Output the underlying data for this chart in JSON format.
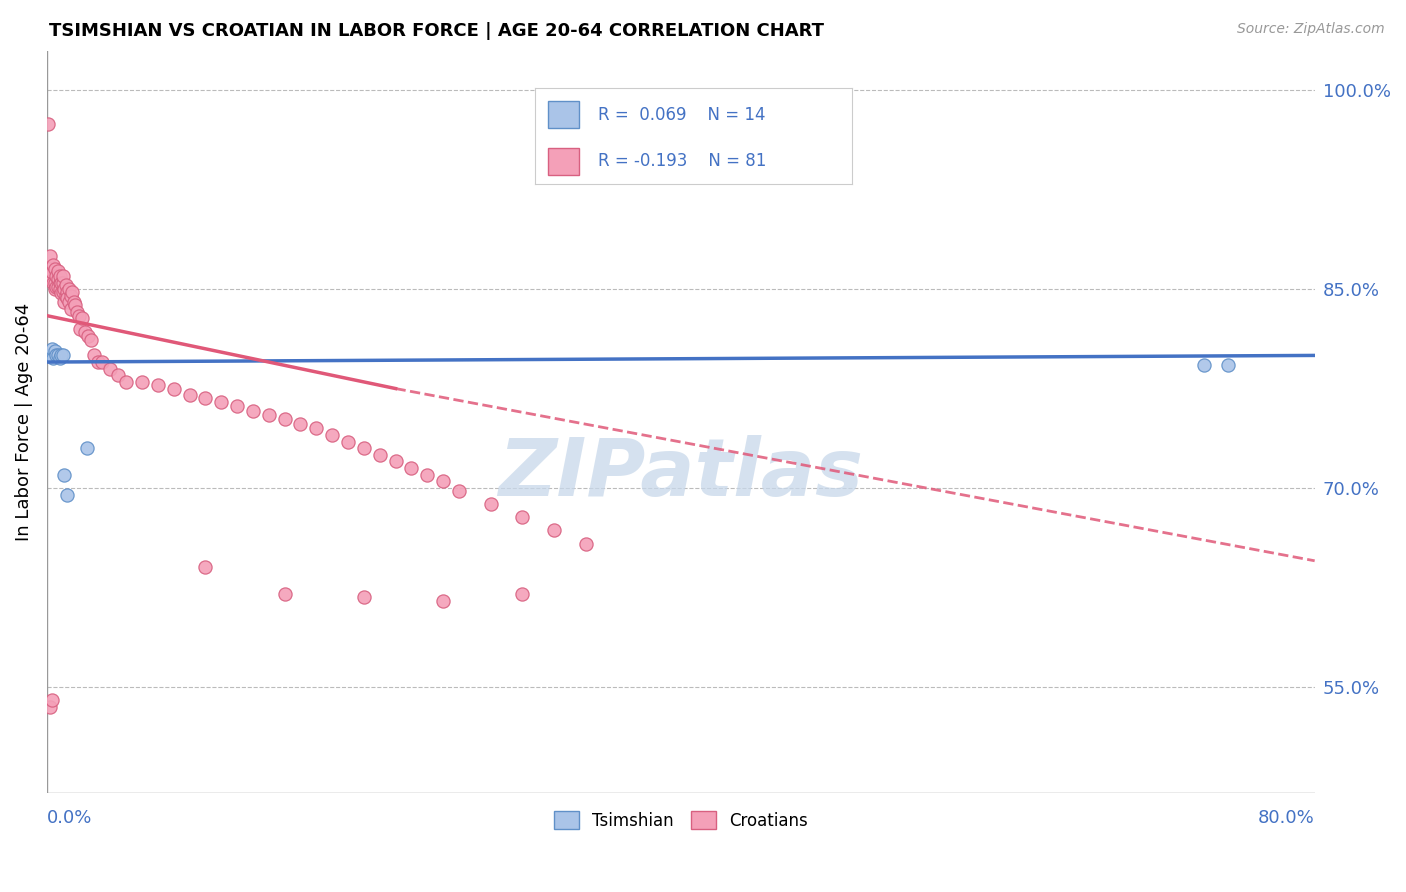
{
  "title": "TSIMSHIAN VS CROATIAN IN LABOR FORCE | AGE 20-64 CORRELATION CHART",
  "source": "Source: ZipAtlas.com",
  "ylabel": "In Labor Force | Age 20-64",
  "right_yticks": [
    55.0,
    70.0,
    85.0,
    100.0
  ],
  "x_range": [
    0.0,
    0.8
  ],
  "y_range": [
    0.47,
    1.03
  ],
  "tsimshian_R": 0.069,
  "tsimshian_N": 14,
  "croatian_R": -0.193,
  "croatian_N": 81,
  "tsimshian_color": "#aac4e8",
  "tsimshian_edge": "#6090c8",
  "croatian_color": "#f4a0b8",
  "croatian_edge": "#d86080",
  "trend_tsimshian_color": "#4472C4",
  "trend_croatian_color": "#E05878",
  "watermark_color": "#c8d8ea",
  "tsimshian_x": [
    0.002,
    0.003,
    0.004,
    0.005,
    0.006,
    0.007,
    0.008,
    0.009,
    0.01,
    0.011,
    0.013,
    0.025,
    0.73,
    0.745
  ],
  "tsimshian_y": [
    0.8,
    0.805,
    0.798,
    0.803,
    0.8,
    0.8,
    0.798,
    0.8,
    0.8,
    0.71,
    0.695,
    0.73,
    0.793,
    0.793
  ],
  "croatian_x": [
    0.001,
    0.002,
    0.002,
    0.003,
    0.003,
    0.004,
    0.004,
    0.005,
    0.005,
    0.005,
    0.006,
    0.006,
    0.007,
    0.007,
    0.007,
    0.008,
    0.008,
    0.008,
    0.009,
    0.009,
    0.01,
    0.01,
    0.01,
    0.011,
    0.011,
    0.012,
    0.012,
    0.013,
    0.013,
    0.014,
    0.014,
    0.015,
    0.015,
    0.016,
    0.017,
    0.018,
    0.019,
    0.02,
    0.021,
    0.022,
    0.024,
    0.026,
    0.028,
    0.03,
    0.032,
    0.035,
    0.04,
    0.045,
    0.05,
    0.06,
    0.07,
    0.08,
    0.09,
    0.1,
    0.11,
    0.12,
    0.13,
    0.14,
    0.15,
    0.16,
    0.17,
    0.18,
    0.19,
    0.2,
    0.21,
    0.22,
    0.23,
    0.24,
    0.25,
    0.26,
    0.28,
    0.3,
    0.32,
    0.34,
    0.002,
    0.003,
    0.1,
    0.15,
    0.2,
    0.25,
    0.3
  ],
  "croatian_y": [
    0.975,
    0.86,
    0.875,
    0.857,
    0.863,
    0.855,
    0.868,
    0.85,
    0.855,
    0.865,
    0.852,
    0.86,
    0.858,
    0.852,
    0.864,
    0.855,
    0.85,
    0.86,
    0.855,
    0.847,
    0.848,
    0.855,
    0.86,
    0.85,
    0.84,
    0.853,
    0.845,
    0.848,
    0.843,
    0.85,
    0.84,
    0.845,
    0.835,
    0.848,
    0.84,
    0.838,
    0.833,
    0.83,
    0.82,
    0.828,
    0.818,
    0.815,
    0.812,
    0.8,
    0.795,
    0.795,
    0.79,
    0.785,
    0.78,
    0.78,
    0.778,
    0.775,
    0.77,
    0.768,
    0.765,
    0.762,
    0.758,
    0.755,
    0.752,
    0.748,
    0.745,
    0.74,
    0.735,
    0.73,
    0.725,
    0.72,
    0.715,
    0.71,
    0.705,
    0.698,
    0.688,
    0.678,
    0.668,
    0.658,
    0.535,
    0.54,
    0.64,
    0.62,
    0.618,
    0.615,
    0.62
  ],
  "trend_tsimshian_x0": 0.0,
  "trend_tsimshian_y0": 0.795,
  "trend_tsimshian_x1": 0.8,
  "trend_tsimshian_y1": 0.8,
  "trend_croatian_x0": 0.0,
  "trend_croatian_y0": 0.83,
  "trend_croatian_solid_x1": 0.22,
  "trend_croatian_solid_y1": 0.775,
  "trend_croatian_x1": 0.8,
  "trend_croatian_y1": 0.645
}
